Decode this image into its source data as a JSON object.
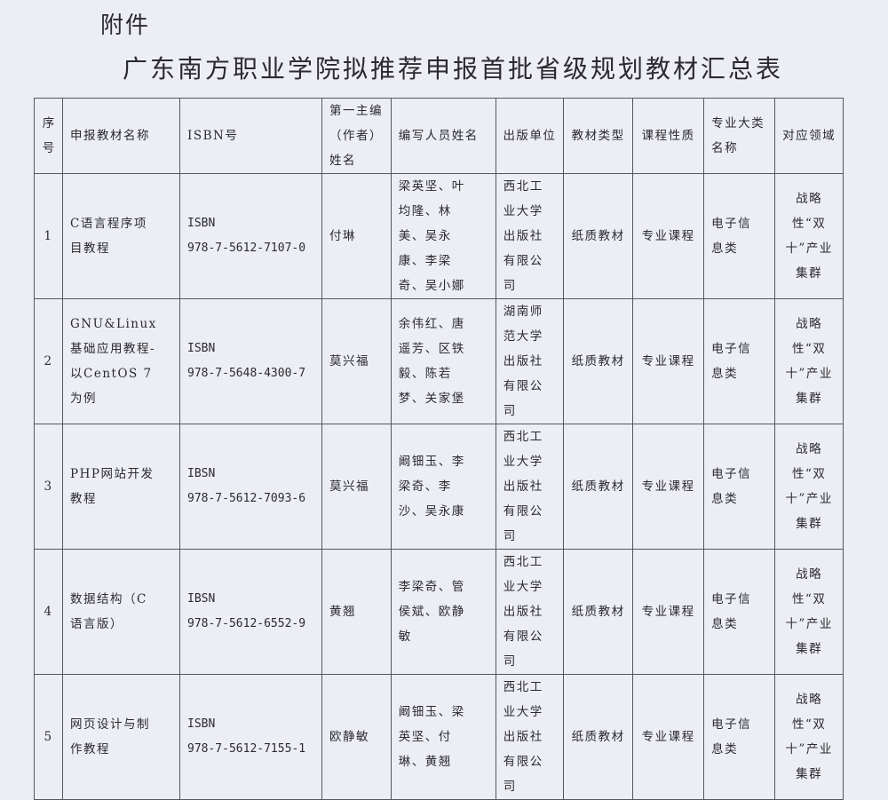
{
  "attachment_label": "附件",
  "title": "广东南方职业学院拟推荐申报首批省级规划教材汇总表",
  "table": {
    "headers": [
      "序号",
      "申报教材名称",
      "ISBN号",
      "第一主编（作者）姓名",
      "编写人员姓名",
      "出版单位",
      "教材类型",
      "课程性质",
      "专业大类名称",
      "对应领域"
    ],
    "rows": [
      {
        "no": "1",
        "name": "C语言程序项目教程",
        "isbn_label": "ISBN",
        "isbn": "978-7-5612-7107-0",
        "chief": "付琳",
        "authors": "梁英坚、叶均隆、林美、吴永康、李梁奇、吴小娜",
        "publisher": "西北工业大学出版社有限公司",
        "type": "纸质教材",
        "nature": "专业课程",
        "category": "电子信息类",
        "field": "战略性“双十”产业集群"
      },
      {
        "no": "2",
        "name": "GNU&Linux 基础应用教程-以CentOS 7 为例",
        "isbn_label": "ISBN",
        "isbn": "978-7-5648-4300-7",
        "chief": "莫兴福",
        "authors": "余伟红、唐遥芳、区铁毅、陈若梦、关家堡",
        "publisher": "湖南师范大学出版社有限公司",
        "type": "纸质教材",
        "nature": "专业课程",
        "category": "电子信息类",
        "field": "战略性“双十”产业集群"
      },
      {
        "no": "3",
        "name": "PHP网站开发教程",
        "isbn_label": "IBSN",
        "isbn": "978-7-5612-7093-6",
        "chief": "莫兴福",
        "authors": "阚钿玉、李梁奇、李沙、吴永康",
        "publisher": "西北工业大学出版社有限公司",
        "type": "纸质教材",
        "nature": "专业课程",
        "category": "电子信息类",
        "field": "战略性“双十”产业集群"
      },
      {
        "no": "4",
        "name": "数据结构（C语言版）",
        "isbn_label": "IBSN",
        "isbn": "978-7-5612-6552-9",
        "chief": "黄翘",
        "authors": "李梁奇、管侯斌、欧静敏",
        "publisher": "西北工业大学出版社有限公司",
        "type": "纸质教材",
        "nature": "专业课程",
        "category": "电子信息类",
        "field": "战略性“双十”产业集群"
      },
      {
        "no": "5",
        "name": "网页设计与制作教程",
        "isbn_label": "ISBN",
        "isbn": "978-7-5612-7155-1",
        "chief": "欧静敏",
        "authors": "阚钿玉、梁英坚、付琳、黄翘",
        "publisher": "西北工业大学出版社有限公司",
        "type": "纸质教材",
        "nature": "专业课程",
        "category": "电子信息类",
        "field": "战略性“双十”产业集群"
      }
    ]
  }
}
